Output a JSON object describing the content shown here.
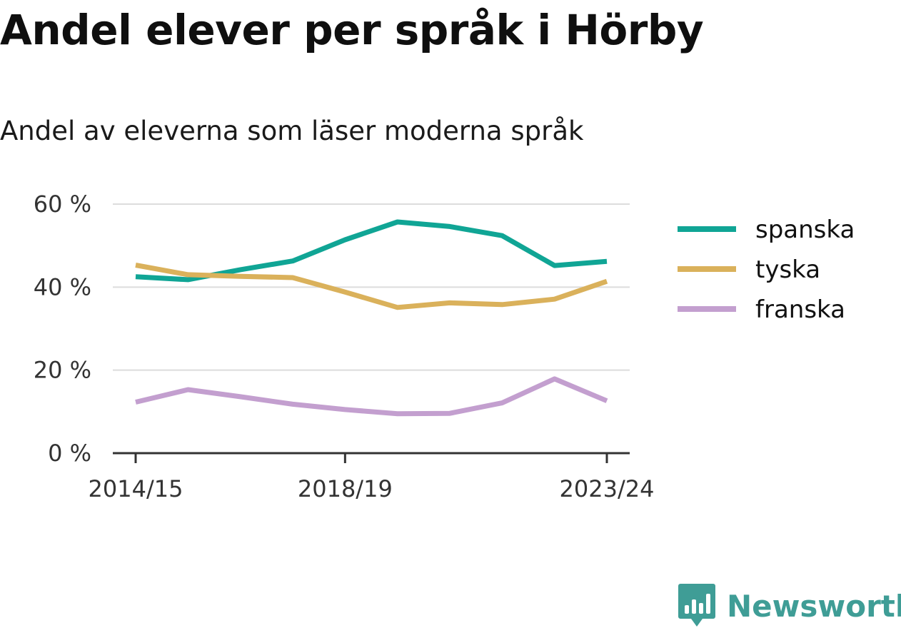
{
  "chart_data": {
    "type": "line",
    "title": "Andel elever per språk i Hörby",
    "subtitle": "Andel av eleverna som läser moderna språk",
    "x": [
      "2014/15",
      "2015/16",
      "2016/17",
      "2017/18",
      "2018/19",
      "2019/20",
      "2020/21",
      "2021/22",
      "2022/23",
      "2023/24"
    ],
    "x_tick_labels": [
      "2014/15",
      "2018/19",
      "2023/24"
    ],
    "series": [
      {
        "name": "spanska",
        "color": "#10a595",
        "values": [
          42.5,
          41.8,
          44.2,
          46.3,
          51.4,
          55.7,
          54.6,
          52.4,
          45.2,
          46.2
        ]
      },
      {
        "name": "tyska",
        "color": "#dab15b",
        "values": [
          45.3,
          43.0,
          42.6,
          42.3,
          38.8,
          35.1,
          36.2,
          35.8,
          37.1,
          41.4
        ]
      },
      {
        "name": "franska",
        "color": "#c39fcf",
        "values": [
          12.3,
          15.3,
          13.6,
          11.8,
          10.5,
          9.5,
          9.6,
          12.1,
          17.9,
          12.6
        ]
      }
    ],
    "ylim": [
      0,
      60
    ],
    "y_ticks": [
      0,
      20,
      40,
      60
    ],
    "y_tick_labels": [
      "0 %",
      "20 %",
      "40 %",
      "60 %"
    ],
    "grid": true,
    "legend_position": "right"
  },
  "brand": {
    "name": "Newsworthy",
    "color": "#3f9d96",
    "icon": "bar-chart-speech-bubble-icon"
  }
}
